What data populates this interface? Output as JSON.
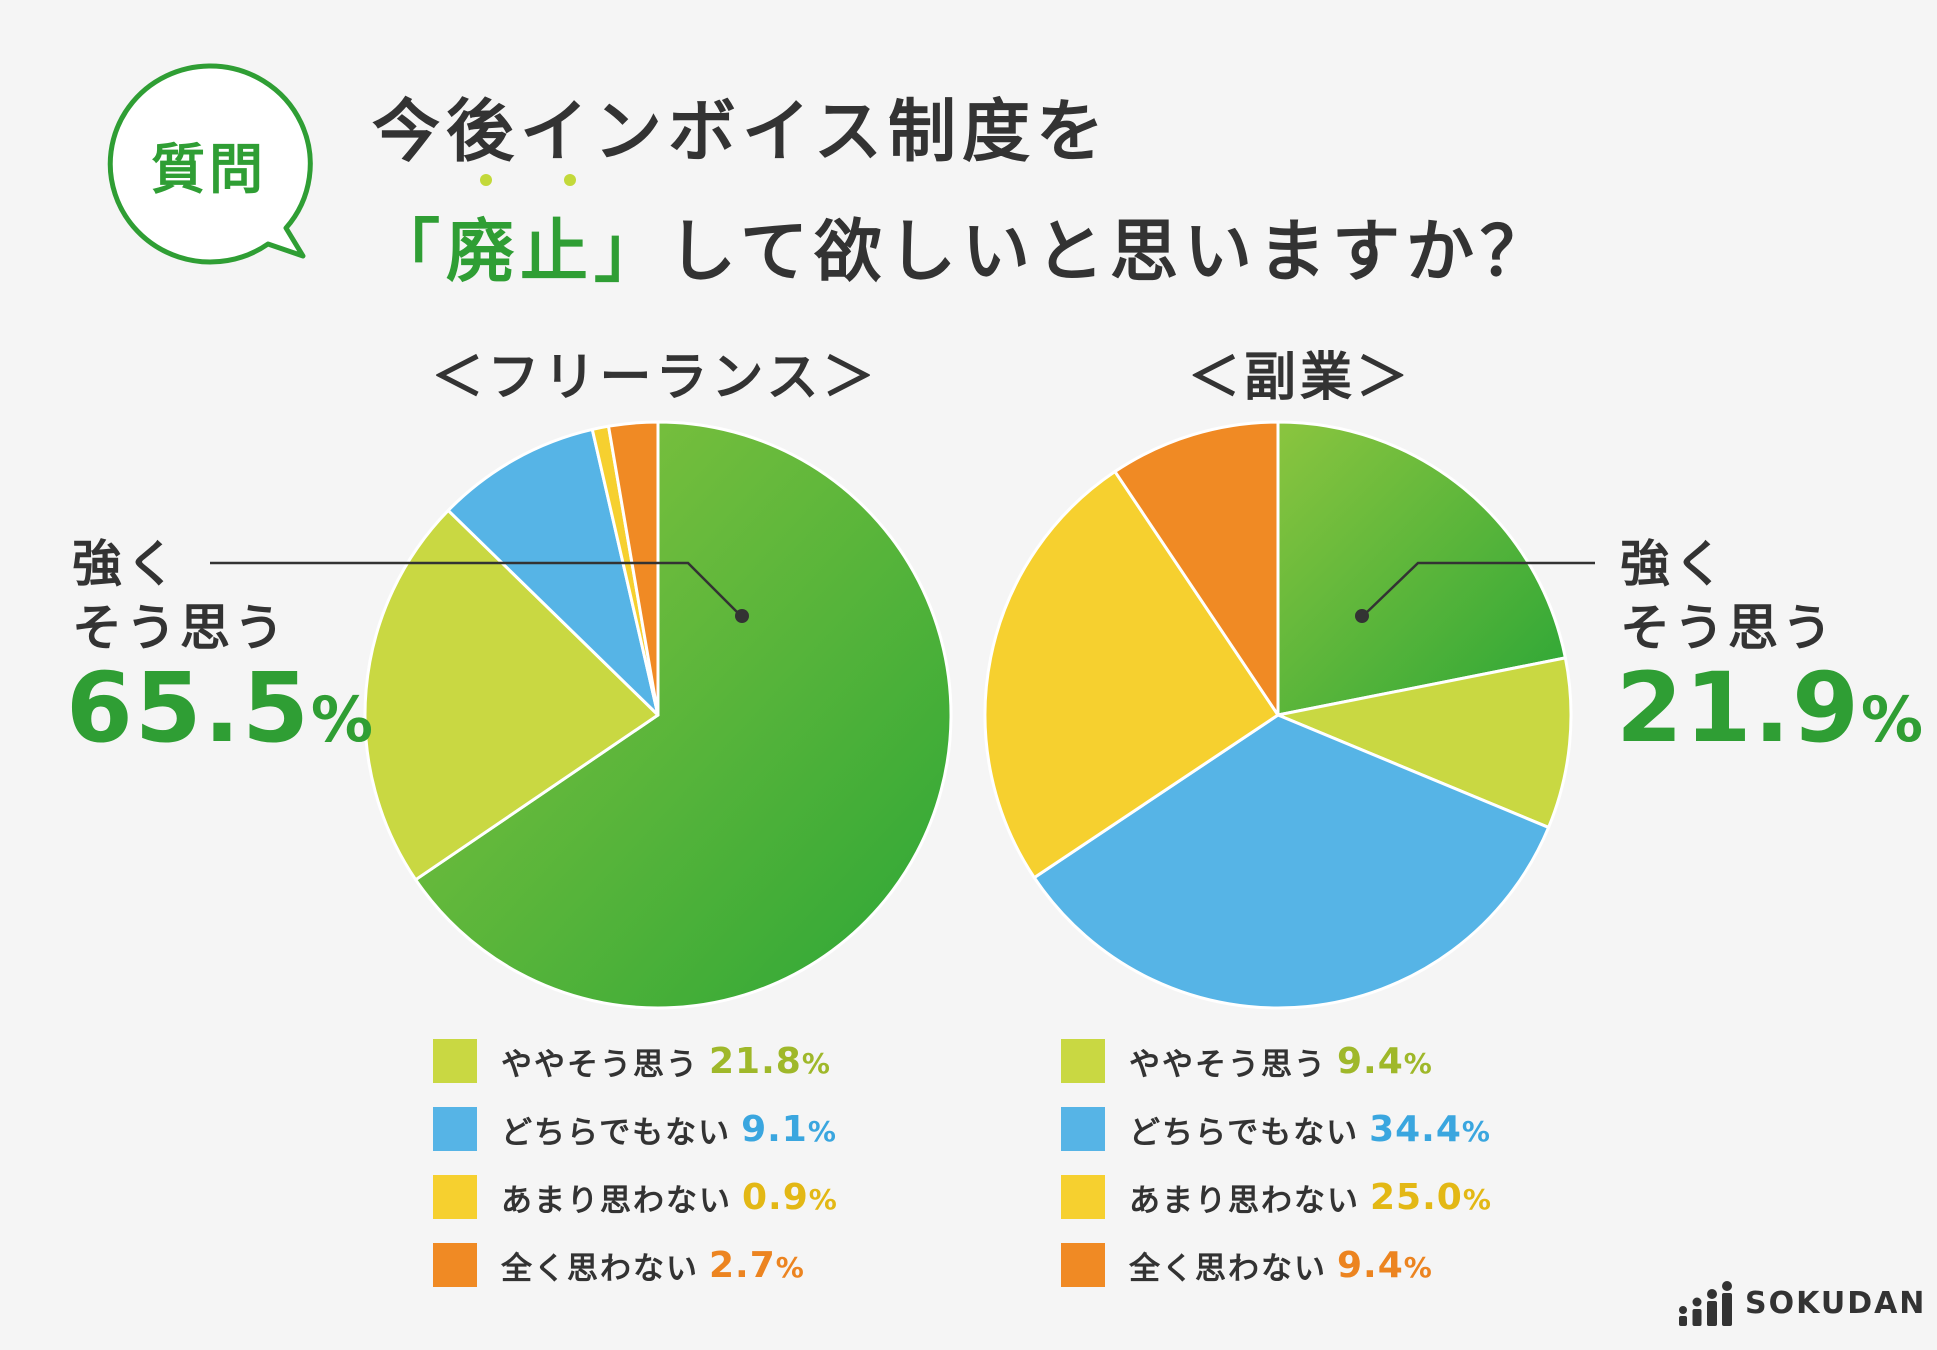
{
  "badge": {
    "label": "質問"
  },
  "title": {
    "line1": "今後インボイス制度を",
    "line2_prefix": "「",
    "line2_emphasis": "廃止",
    "line2_suffix": "」",
    "line2_rest": "して欲しいと思いますか？"
  },
  "colors": {
    "strongly_agree_a": "#8bc53f",
    "strongly_agree_b": "#2ba636",
    "somewhat_agree": "#c9d842",
    "neutral": "#56b4e6",
    "somewhat_disagree": "#f6d02f",
    "strongly_disagree": "#f08a24",
    "accent_green": "#2f9e34"
  },
  "callouts": {
    "freelance": {
      "line1": "強く",
      "line2": "そう思う",
      "value": "65.5",
      "unit": "%"
    },
    "side_job": {
      "line1": "強く",
      "line2": "そう思う",
      "value": "21.9",
      "unit": "%"
    }
  },
  "chart_data": [
    {
      "type": "pie",
      "title": "＜フリーランス＞",
      "categories": [
        "強くそう思う",
        "ややそう思う",
        "どちらでもない",
        "あまり思わない",
        "全く思わない"
      ],
      "values": [
        65.5,
        21.8,
        9.1,
        0.9,
        2.7
      ],
      "legend": [
        {
          "label": "ややそう思う",
          "value": "21.8",
          "unit": "%",
          "color": "#c9d842",
          "value_color": "#9fb82a"
        },
        {
          "label": "どちらでもない",
          "value": "9.1",
          "unit": "%",
          "color": "#56b4e6",
          "value_color": "#3aa6df"
        },
        {
          "label": "あまり思わない",
          "value": "0.9",
          "unit": "%",
          "color": "#f6d02f",
          "value_color": "#e3b815"
        },
        {
          "label": "全く思わない",
          "value": "2.7",
          "unit": "%",
          "color": "#f08a24",
          "value_color": "#ec8420"
        }
      ]
    },
    {
      "type": "pie",
      "title": "＜副業＞",
      "categories": [
        "強くそう思う",
        "ややそう思う",
        "どちらでもない",
        "あまり思わない",
        "全く思わない"
      ],
      "values": [
        21.9,
        9.4,
        34.4,
        25.0,
        9.4
      ],
      "legend": [
        {
          "label": "ややそう思う",
          "value": "9.4",
          "unit": "%",
          "color": "#c9d842",
          "value_color": "#9fb82a"
        },
        {
          "label": "どちらでもない",
          "value": "34.4",
          "unit": "%",
          "color": "#56b4e6",
          "value_color": "#3aa6df"
        },
        {
          "label": "あまり思わない",
          "value": "25.0",
          "unit": "%",
          "color": "#f6d02f",
          "value_color": "#e3b815"
        },
        {
          "label": "全く思わない",
          "value": "9.4",
          "unit": "%",
          "color": "#f08a24",
          "value_color": "#ec8420"
        }
      ]
    }
  ],
  "brand": {
    "name": "SOKUDAN"
  }
}
